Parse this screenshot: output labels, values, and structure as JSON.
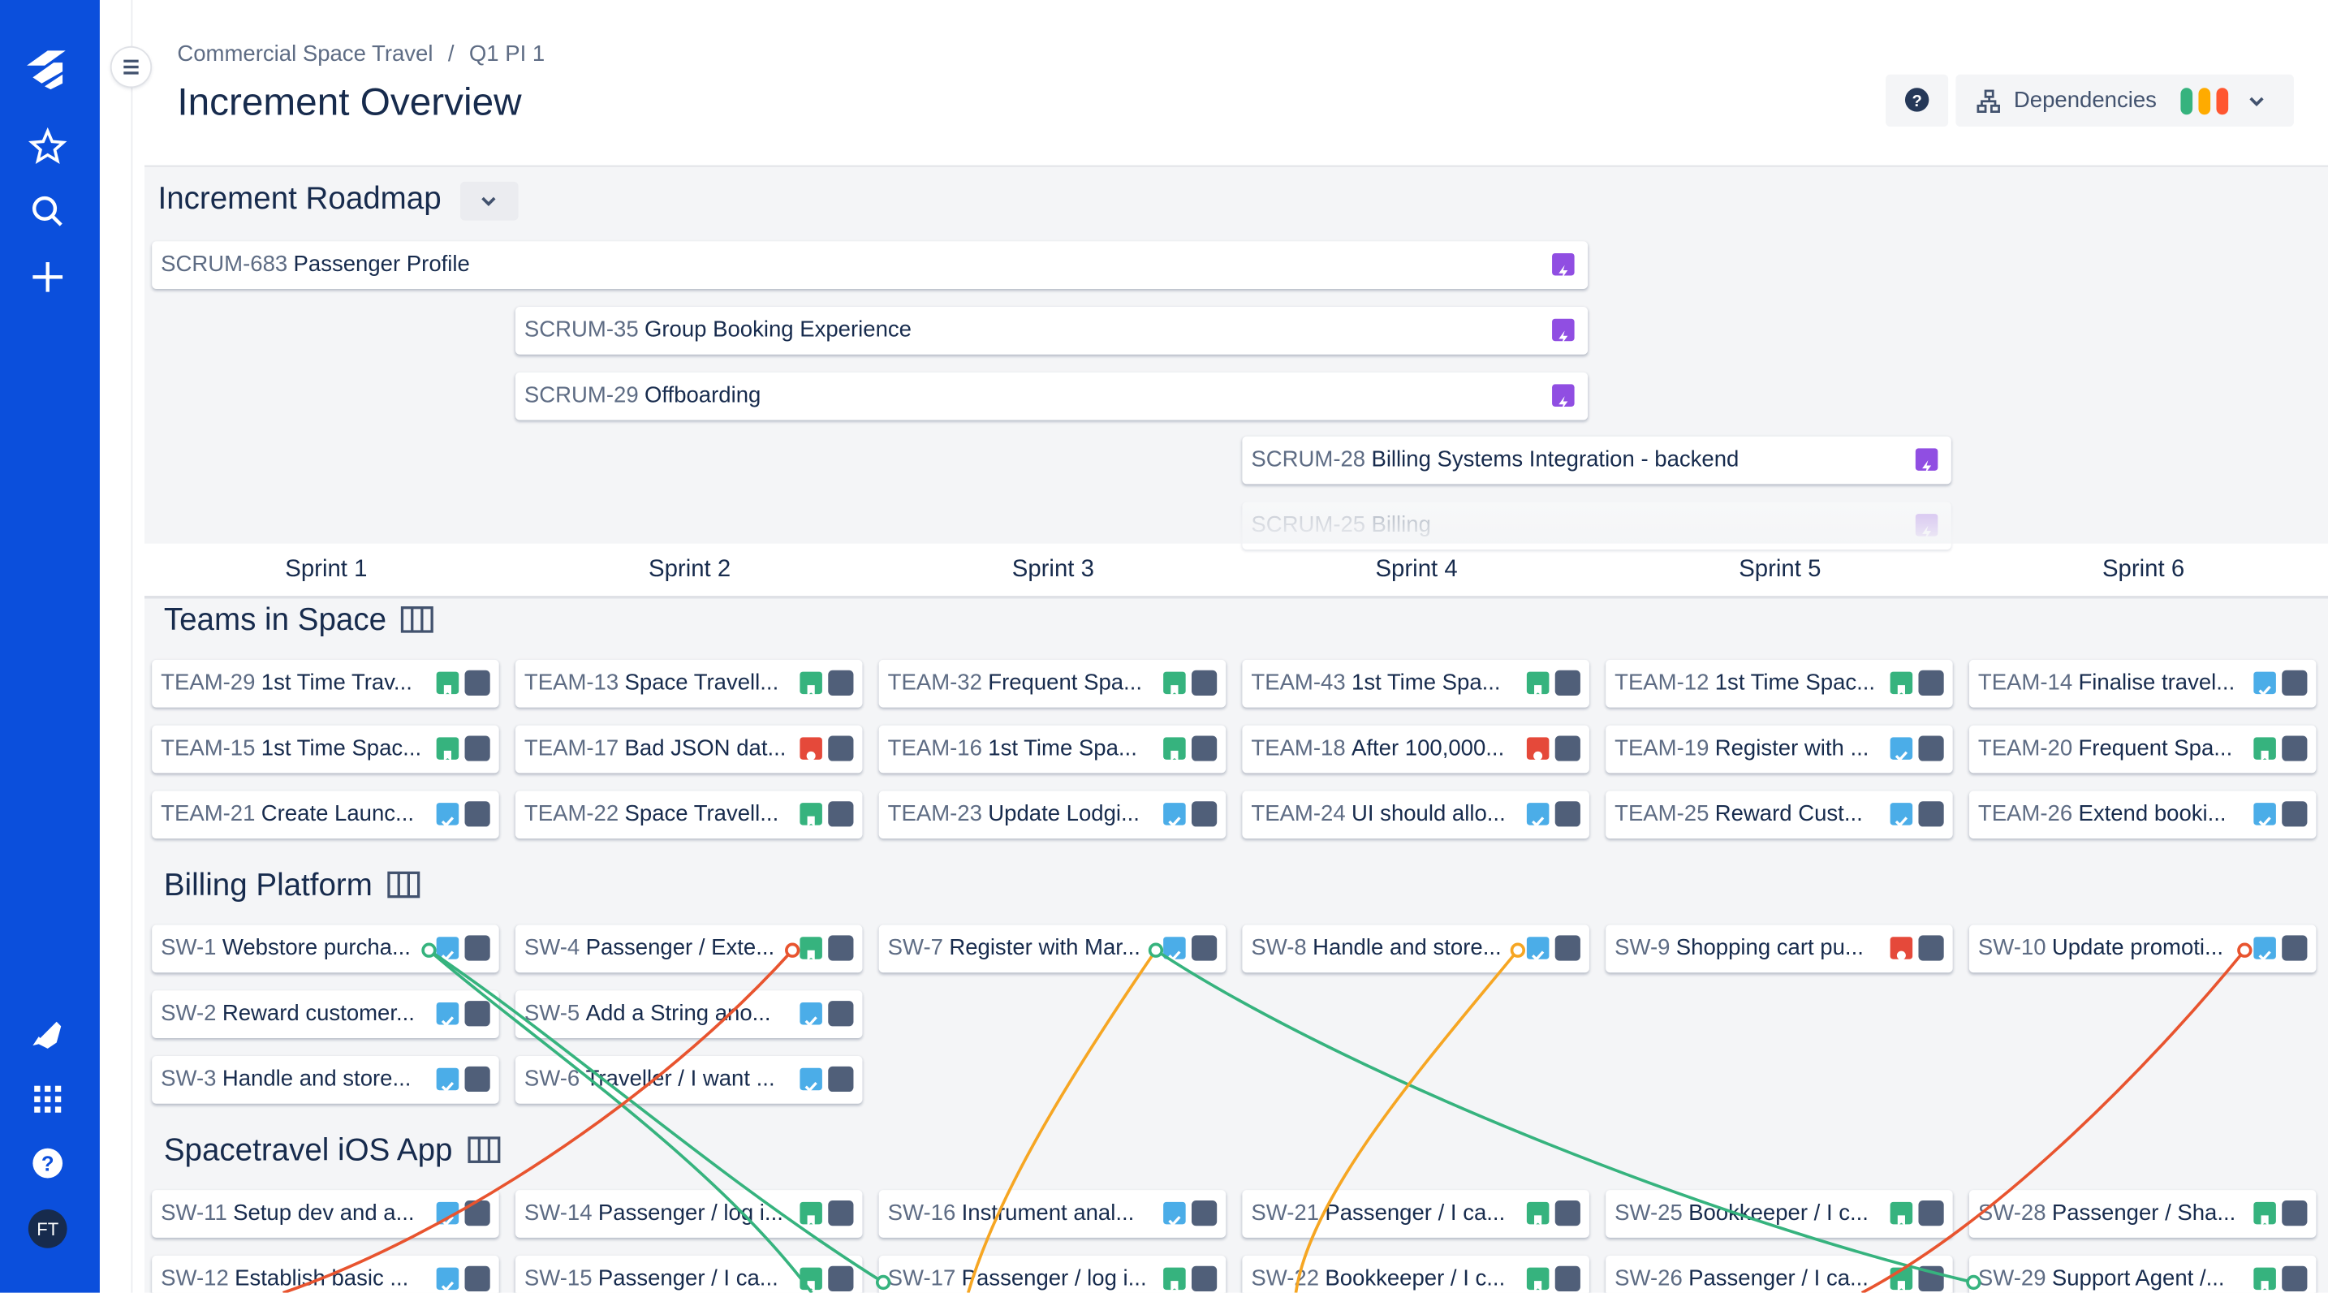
{
  "breadcrumb": [
    "Commercial Space Travel",
    "Q1 PI 1"
  ],
  "title": "Increment Overview",
  "dependencies_button": "Dependencies",
  "avatar": "FT",
  "roadmap": {
    "title": "Increment Roadmap",
    "items": [
      {
        "key": "SCRUM-683",
        "name": "Passenger Profile"
      },
      {
        "key": "SCRUM-35",
        "name": "Group Booking Experience"
      },
      {
        "key": "SCRUM-29",
        "name": "Offboarding"
      },
      {
        "key": "SCRUM-28",
        "name": "Billing Systems Integration - backend"
      },
      {
        "key": "SCRUM-25",
        "name": "Billing"
      }
    ]
  },
  "sprints": [
    "Sprint 1",
    "Sprint 2",
    "Sprint 3",
    "Sprint 4",
    "Sprint 5",
    "Sprint 6"
  ],
  "teams": [
    {
      "name": "Teams in Space",
      "columns": [
        [
          {
            "key": "TEAM-29",
            "title": "1st Time Trav...",
            "type": "story"
          },
          {
            "key": "TEAM-15",
            "title": "1st Time Spac...",
            "type": "story"
          },
          {
            "key": "TEAM-21",
            "title": "Create Launc...",
            "type": "task"
          }
        ],
        [
          {
            "key": "TEAM-13",
            "title": "Space Travell...",
            "type": "story"
          },
          {
            "key": "TEAM-17",
            "title": "Bad JSON dat...",
            "type": "bug"
          },
          {
            "key": "TEAM-22",
            "title": "Space Travell...",
            "type": "story"
          }
        ],
        [
          {
            "key": "TEAM-32",
            "title": "Frequent Spa...",
            "type": "story"
          },
          {
            "key": "TEAM-16",
            "title": "1st Time Spa...",
            "type": "story"
          },
          {
            "key": "TEAM-23",
            "title": "Update Lodgi...",
            "type": "task"
          }
        ],
        [
          {
            "key": "TEAM-43",
            "title": "1st Time Spa...",
            "type": "story"
          },
          {
            "key": "TEAM-18",
            "title": "After 100,000...",
            "type": "bug"
          },
          {
            "key": "TEAM-24",
            "title": "UI should allo...",
            "type": "task"
          }
        ],
        [
          {
            "key": "TEAM-12",
            "title": "1st Time Spac...",
            "type": "story"
          },
          {
            "key": "TEAM-19",
            "title": "Register with ...",
            "type": "task"
          },
          {
            "key": "TEAM-25",
            "title": "Reward Cust...",
            "type": "task"
          }
        ],
        [
          {
            "key": "TEAM-14",
            "title": "Finalise travel...",
            "type": "task"
          },
          {
            "key": "TEAM-20",
            "title": "Frequent Spa...",
            "type": "story"
          },
          {
            "key": "TEAM-26",
            "title": "Extend booki...",
            "type": "task"
          }
        ]
      ]
    },
    {
      "name": "Billing Platform",
      "columns": [
        [
          {
            "key": "SW-1",
            "title": "Webstore purcha...",
            "type": "task"
          },
          {
            "key": "SW-2",
            "title": "Reward customer...",
            "type": "task"
          },
          {
            "key": "SW-3",
            "title": "Handle and store...",
            "type": "task"
          }
        ],
        [
          {
            "key": "SW-4",
            "title": "Passenger / Exte...",
            "type": "story"
          },
          {
            "key": "SW-5",
            "title": "Add a String ano...",
            "type": "task"
          },
          {
            "key": "SW-6",
            "title": "Traveller / I want ...",
            "type": "task"
          }
        ],
        [
          {
            "key": "SW-7",
            "title": "Register with Mar...",
            "type": "task"
          }
        ],
        [
          {
            "key": "SW-8",
            "title": "Handle and store...",
            "type": "task"
          }
        ],
        [
          {
            "key": "SW-9",
            "title": "Shopping cart pu...",
            "type": "bug"
          }
        ],
        [
          {
            "key": "SW-10",
            "title": "Update promoti...",
            "type": "task"
          }
        ]
      ]
    },
    {
      "name": "Spacetravel iOS App",
      "columns": [
        [
          {
            "key": "SW-11",
            "title": "Setup dev and a...",
            "type": "task"
          },
          {
            "key": "SW-12",
            "title": "Establish basic ...",
            "type": "task"
          }
        ],
        [
          {
            "key": "SW-14",
            "title": "Passenger / log i...",
            "type": "story"
          },
          {
            "key": "SW-15",
            "title": "Passenger / I ca...",
            "type": "story"
          }
        ],
        [
          {
            "key": "SW-16",
            "title": "Instrument anal...",
            "type": "task"
          },
          {
            "key": "SW-17",
            "title": "Passenger / log i...",
            "type": "story"
          }
        ],
        [
          {
            "key": "SW-21",
            "title": "Passenger / I ca...",
            "type": "story"
          },
          {
            "key": "SW-22",
            "title": "Bookkeeper / I c...",
            "type": "story"
          }
        ],
        [
          {
            "key": "SW-25",
            "title": "Bookkeeper / I c...",
            "type": "story"
          },
          {
            "key": "SW-26",
            "title": "Passenger / I ca...",
            "type": "story"
          }
        ],
        [
          {
            "key": "SW-28",
            "title": "Passenger / Sha...",
            "type": "story"
          },
          {
            "key": "SW-29",
            "title": "Support Agent /...",
            "type": "story"
          }
        ]
      ]
    }
  ]
}
